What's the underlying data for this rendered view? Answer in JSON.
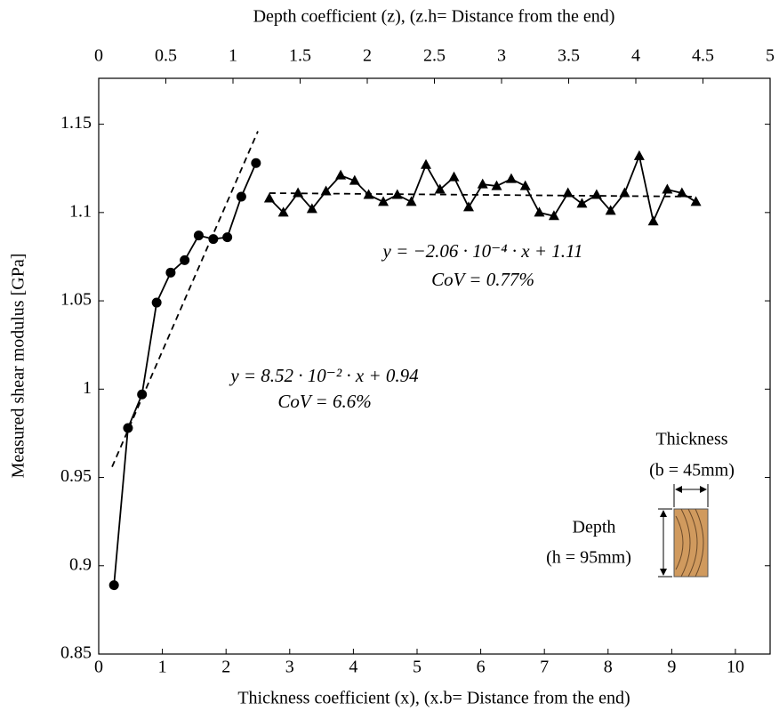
{
  "chart_data": {
    "type": "line",
    "xlabel": "Thickness coefficient (x), (x.b= Distance from the end)",
    "x2label": "Depth coefficient (z), (z.h= Distance from the end)",
    "ylabel": "Measured shear modulus [GPa]",
    "xlim": [
      0,
      10.545
    ],
    "xticks": [
      0,
      1,
      2,
      3,
      4,
      5,
      6,
      7,
      8,
      9,
      10
    ],
    "x2lim": [
      0,
      5
    ],
    "x2ticks": [
      0,
      0.5,
      1,
      1.5,
      2,
      2.5,
      3,
      3.5,
      4,
      4.5,
      5
    ],
    "ylim": [
      0.85,
      1.176
    ],
    "yticks": [
      0.85,
      0.9,
      0.95,
      1,
      1.05,
      1.1,
      1.15
    ],
    "grid": false,
    "series": [
      {
        "color": "#000000",
        "marker": "circle",
        "linestyle": "solid",
        "x": [
          0.24,
          0.46,
          0.68,
          0.91,
          1.13,
          1.35,
          1.57,
          1.8,
          2.02,
          2.24,
          2.47
        ],
        "values": [
          0.889,
          0.978,
          0.997,
          1.049,
          1.066,
          1.073,
          1.087,
          1.085,
          1.086,
          1.109,
          1.128
        ]
      },
      {
        "color": "#000000",
        "marker": "triangle",
        "linestyle": "solid",
        "x": [
          2.68,
          2.9,
          3.13,
          3.35,
          3.57,
          3.8,
          4.02,
          4.24,
          4.47,
          4.69,
          4.91,
          5.14,
          5.36,
          5.58,
          5.81,
          6.03,
          6.25,
          6.48,
          6.7,
          6.92,
          7.15,
          7.37,
          7.59,
          7.82,
          8.04,
          8.26,
          8.49,
          8.71,
          8.93,
          9.16,
          9.38
        ],
        "values": [
          1.108,
          1.1,
          1.111,
          1.102,
          1.112,
          1.121,
          1.118,
          1.11,
          1.106,
          1.11,
          1.106,
          1.127,
          1.113,
          1.12,
          1.103,
          1.116,
          1.115,
          1.119,
          1.115,
          1.1,
          1.098,
          1.111,
          1.105,
          1.11,
          1.101,
          1.111,
          1.132,
          1.095,
          1.113,
          1.111,
          1.106
        ]
      },
      {
        "color": "#000000",
        "marker": "none",
        "linestyle": "dashed",
        "x": [
          0.21,
          2.5
        ],
        "values": [
          0.956,
          1.146
        ]
      },
      {
        "color": "#000000",
        "marker": "none",
        "linestyle": "dashed",
        "x": [
          2.68,
          9.38
        ],
        "values": [
          1.111,
          1.109
        ]
      }
    ],
    "annotations": [
      {
        "text": "y = 8.52 · 10⁻² · x + 0.94"
      },
      {
        "text": "CoV  =  6.6%"
      },
      {
        "text": "y = −2.06 · 10⁻⁴ · x + 1.11"
      },
      {
        "text": "CoV  =  0.77%"
      }
    ],
    "inset": {
      "thickness_label": "Thickness",
      "thickness_value": "(b = 45mm)",
      "depth_label": "Depth",
      "depth_value": "(h = 95mm)"
    }
  }
}
